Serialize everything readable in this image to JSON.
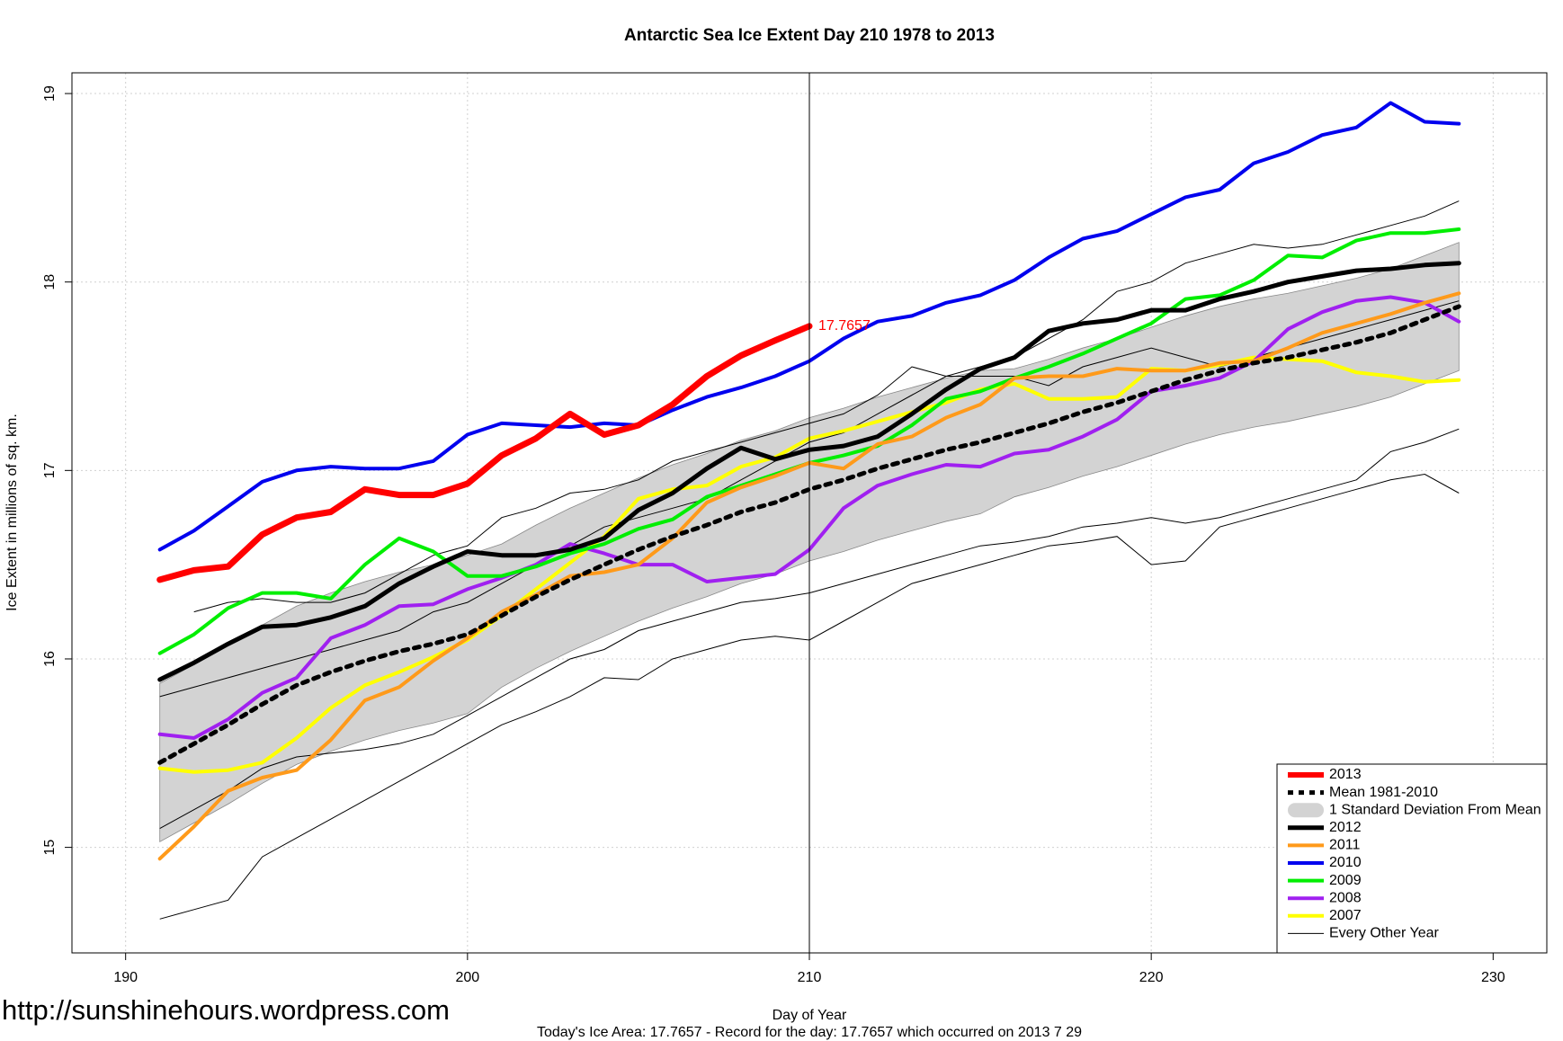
{
  "chart_data": {
    "type": "line",
    "title": "Antarctic Sea Ice Extent Day 210 1978 to 2013",
    "xlabel": "Day of Year",
    "ylabel": "Ice Extent in millions of sq. km.",
    "footer": "Today's Ice Area: 17.7657  - Record for the day: 17.7657 which occurred on 2013 7 29",
    "watermark": "http://sunshinehours.wordpress.com",
    "xlim": [
      188.43,
      231.57
    ],
    "ylim": [
      14.44,
      19.11
    ],
    "xticks": [
      190,
      200,
      210,
      220,
      230
    ],
    "yticks": [
      15,
      16,
      17,
      18,
      19
    ],
    "grid": true,
    "vline": 210,
    "legend": "bottom-right",
    "x": [
      191,
      192,
      193,
      194,
      195,
      196,
      197,
      198,
      199,
      200,
      201,
      202,
      203,
      204,
      205,
      206,
      207,
      208,
      209,
      210,
      211,
      212,
      213,
      214,
      215,
      216,
      217,
      218,
      219,
      220,
      221,
      222,
      223,
      224,
      225,
      226,
      227,
      228,
      229
    ],
    "series": [
      {
        "name": "2013",
        "color": "#ff0000",
        "line_width": 7,
        "values": [
          16.42,
          16.47,
          16.49,
          16.66,
          16.75,
          16.78,
          16.9,
          16.87,
          16.87,
          16.93,
          17.08,
          17.17,
          17.3,
          17.19,
          17.24,
          17.35,
          17.5,
          17.61,
          17.69,
          17.7657,
          null,
          null,
          null,
          null,
          null,
          null,
          null,
          null,
          null,
          null,
          null,
          null,
          null,
          null,
          null,
          null,
          null,
          null,
          null
        ]
      },
      {
        "name": "Mean 1981-2010",
        "color": "#000000",
        "line_width": 5,
        "dash": true,
        "values": [
          15.45,
          15.55,
          15.65,
          15.76,
          15.86,
          15.93,
          15.99,
          16.04,
          16.08,
          16.13,
          16.23,
          16.33,
          16.42,
          16.5,
          16.58,
          16.65,
          16.71,
          16.78,
          16.83,
          16.9,
          16.95,
          17.01,
          17.06,
          17.11,
          17.15,
          17.2,
          17.25,
          17.31,
          17.36,
          17.42,
          17.48,
          17.53,
          17.57,
          17.6,
          17.64,
          17.68,
          17.73,
          17.8,
          17.87
        ]
      },
      {
        "name": "1 Standard Deviation From Mean",
        "color": "#d3d3d3",
        "band": true,
        "upper": [
          15.87,
          15.97,
          16.07,
          16.18,
          16.28,
          16.35,
          16.41,
          16.46,
          16.5,
          16.55,
          16.61,
          16.71,
          16.8,
          16.88,
          16.96,
          17.03,
          17.09,
          17.16,
          17.21,
          17.28,
          17.33,
          17.39,
          17.44,
          17.49,
          17.53,
          17.54,
          17.59,
          17.65,
          17.7,
          17.76,
          17.82,
          17.87,
          17.91,
          17.94,
          17.98,
          18.02,
          18.07,
          18.14,
          18.21
        ],
        "lower": [
          15.03,
          15.13,
          15.23,
          15.34,
          15.44,
          15.51,
          15.57,
          15.62,
          15.66,
          15.71,
          15.85,
          15.95,
          16.04,
          16.12,
          16.2,
          16.27,
          16.33,
          16.4,
          16.45,
          16.52,
          16.57,
          16.63,
          16.68,
          16.73,
          16.77,
          16.86,
          16.91,
          16.97,
          17.02,
          17.08,
          17.14,
          17.19,
          17.23,
          17.26,
          17.3,
          17.34,
          17.39,
          17.46,
          17.53
        ]
      },
      {
        "name": "2012",
        "color": "#000000",
        "line_width": 5,
        "values": [
          15.89,
          15.98,
          16.08,
          16.17,
          16.18,
          16.22,
          16.28,
          16.4,
          16.49,
          16.57,
          16.55,
          16.55,
          16.58,
          16.64,
          16.79,
          16.88,
          17.01,
          17.12,
          17.06,
          17.11,
          17.13,
          17.18,
          17.3,
          17.43,
          17.54,
          17.6,
          17.74,
          17.78,
          17.8,
          17.85,
          17.85,
          17.91,
          17.95,
          18.0,
          18.03,
          18.06,
          18.07,
          18.09,
          18.1
        ]
      },
      {
        "name": "2011",
        "color": "#ff9a1a",
        "line_width": 4,
        "values": [
          14.94,
          15.11,
          15.3,
          15.37,
          15.41,
          15.57,
          15.78,
          15.85,
          15.99,
          16.11,
          16.25,
          16.34,
          16.44,
          16.46,
          16.5,
          16.64,
          16.83,
          16.91,
          16.97,
          17.04,
          17.01,
          17.14,
          17.18,
          17.28,
          17.35,
          17.49,
          17.5,
          17.5,
          17.54,
          17.53,
          17.53,
          17.57,
          17.58,
          17.65,
          17.73,
          17.78,
          17.83,
          17.89,
          17.94
        ]
      },
      {
        "name": "2010",
        "color": "#0000ee",
        "line_width": 4,
        "values": [
          16.58,
          16.68,
          16.81,
          16.94,
          17.0,
          17.02,
          17.01,
          17.01,
          17.05,
          17.19,
          17.25,
          17.24,
          17.23,
          17.25,
          17.24,
          17.32,
          17.39,
          17.44,
          17.5,
          17.58,
          17.7,
          17.79,
          17.82,
          17.89,
          17.93,
          18.01,
          18.13,
          18.23,
          18.27,
          18.36,
          18.45,
          18.49,
          18.63,
          18.69,
          18.78,
          18.82,
          18.95,
          18.85,
          18.84
        ]
      },
      {
        "name": "2009",
        "color": "#00ee00",
        "line_width": 4,
        "values": [
          16.03,
          16.13,
          16.27,
          16.35,
          16.35,
          16.32,
          16.5,
          16.64,
          16.57,
          16.44,
          16.44,
          16.49,
          16.56,
          16.61,
          16.69,
          16.74,
          16.86,
          16.92,
          16.98,
          17.04,
          17.08,
          17.13,
          17.24,
          17.38,
          17.42,
          17.49,
          17.55,
          17.62,
          17.7,
          17.78,
          17.91,
          17.93,
          18.01,
          18.14,
          18.13,
          18.22,
          18.26,
          18.26,
          18.28
        ]
      },
      {
        "name": "2008",
        "color": "#a020f0",
        "line_width": 4,
        "values": [
          15.6,
          15.58,
          15.68,
          15.82,
          15.9,
          16.11,
          16.18,
          16.28,
          16.29,
          16.37,
          16.43,
          16.5,
          16.61,
          16.56,
          16.5,
          16.5,
          16.41,
          16.43,
          16.45,
          16.58,
          16.8,
          16.92,
          16.98,
          17.03,
          17.02,
          17.09,
          17.11,
          17.18,
          17.27,
          17.42,
          17.45,
          17.49,
          17.58,
          17.75,
          17.84,
          17.9,
          17.92,
          17.89,
          17.79
        ]
      },
      {
        "name": "2007",
        "color": "#ffff00",
        "line_width": 4,
        "values": [
          15.42,
          15.4,
          15.41,
          15.45,
          15.58,
          15.74,
          15.86,
          15.93,
          16.01,
          16.1,
          16.23,
          16.37,
          16.51,
          16.65,
          16.85,
          16.9,
          16.92,
          17.02,
          17.07,
          17.17,
          17.21,
          17.26,
          17.31,
          17.36,
          17.43,
          17.46,
          17.38,
          17.38,
          17.39,
          17.54,
          17.53,
          17.56,
          17.6,
          17.59,
          17.58,
          17.52,
          17.5,
          17.47,
          17.48
        ]
      },
      {
        "name": "Every Other Year",
        "color": "#000000",
        "line_width": 1,
        "lines": [
          [
            14.62,
            14.67,
            14.72,
            14.95,
            15.05,
            15.15,
            15.25,
            15.35,
            15.45,
            15.55,
            15.65,
            15.72,
            15.8,
            15.9,
            15.89,
            16.0,
            16.05,
            16.1,
            16.12,
            16.1,
            16.2,
            16.3,
            16.4,
            16.45,
            16.5,
            16.55,
            16.6,
            16.62,
            16.65,
            16.5,
            16.52,
            16.7,
            16.75,
            16.8,
            16.85,
            16.9,
            16.95,
            16.98,
            16.88
          ],
          [
            15.1,
            15.2,
            15.3,
            15.42,
            15.48,
            15.5,
            15.52,
            15.55,
            15.6,
            15.7,
            15.8,
            15.9,
            16.0,
            16.05,
            16.15,
            16.2,
            16.25,
            16.3,
            16.32,
            16.35,
            16.4,
            16.45,
            16.5,
            16.55,
            16.6,
            16.62,
            16.65,
            16.7,
            16.72,
            16.75,
            16.72,
            16.75,
            16.8,
            16.85,
            16.9,
            16.95,
            17.1,
            17.15,
            17.22
          ],
          [
            null,
            16.25,
            16.3,
            16.32,
            16.3,
            16.3,
            16.35,
            16.45,
            16.55,
            16.6,
            16.75,
            16.8,
            16.88,
            16.9,
            16.95,
            17.05,
            17.1,
            17.15,
            17.2,
            17.25,
            17.3,
            17.4,
            17.55,
            17.5,
            17.55,
            17.6,
            17.7,
            17.8,
            17.95,
            18.0,
            18.1,
            18.15,
            18.2,
            18.18,
            18.2,
            18.25,
            18.3,
            18.35,
            18.43
          ],
          [
            15.8,
            15.85,
            15.9,
            15.95,
            16.0,
            16.05,
            16.1,
            16.15,
            16.25,
            16.3,
            16.4,
            16.5,
            16.6,
            16.7,
            16.75,
            16.8,
            16.85,
            16.95,
            17.05,
            17.15,
            17.2,
            17.3,
            17.4,
            17.5,
            17.5,
            17.5,
            17.45,
            17.55,
            17.6,
            17.65,
            17.6,
            17.55,
            17.6,
            17.65,
            17.7,
            17.75,
            17.8,
            17.85,
            17.9
          ]
        ]
      }
    ]
  }
}
